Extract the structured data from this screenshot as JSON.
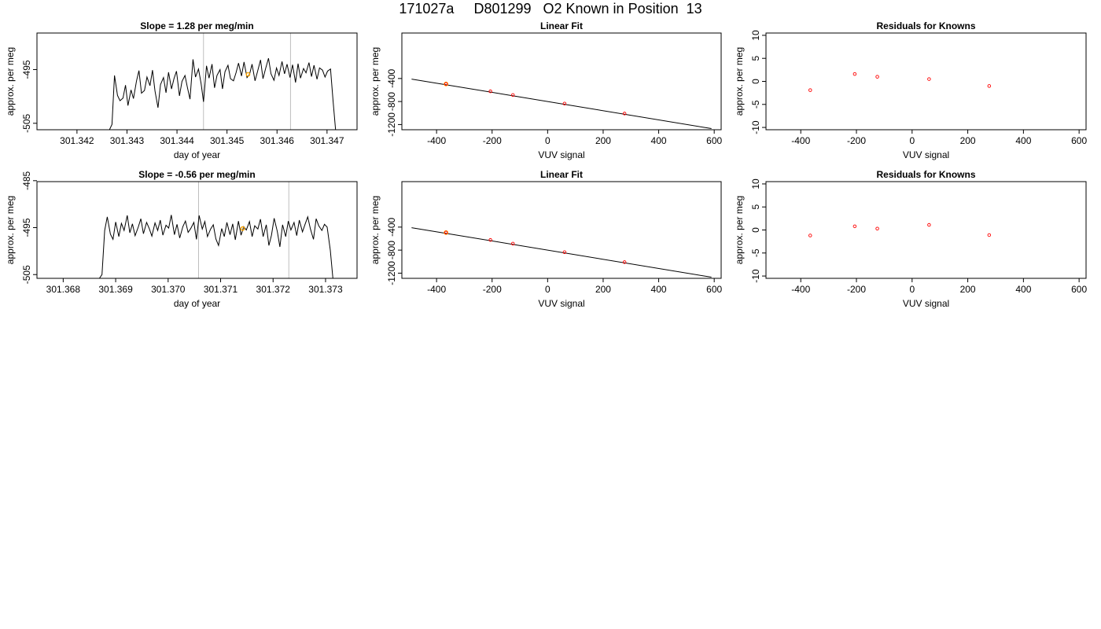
{
  "title": "171027a     D801299   O2 Known in Position  13",
  "colors": {
    "line": "#000000",
    "vline": "#bebebe",
    "point": "#ff0000",
    "highlight": "#ffa500"
  },
  "chart_data": [
    {
      "type": "line",
      "title": "Slope =  1.28  per meg/min",
      "xlabel": "day of year",
      "ylabel": "approx. per meg",
      "xlim": [
        301.3412,
        301.3476
      ],
      "ylim": [
        -506.2,
        -488.2
      ],
      "xticks": [
        "301.342",
        "301.343",
        "301.344",
        "301.345",
        "301.346",
        "301.347"
      ],
      "yticks": [
        "-495",
        "-505"
      ],
      "vlines": [
        301.34453,
        301.34627
      ],
      "highlight": [
        301.34542,
        -495.9
      ],
      "series": [
        {
          "x": [
            301.34265,
            301.3427,
            301.34275,
            301.34281,
            301.34286,
            301.34292,
            301.34297,
            301.34302,
            301.34308,
            301.34313,
            301.34319,
            301.34324,
            301.34329,
            301.34335,
            301.3434,
            301.34346,
            301.34351,
            301.34356,
            301.34362,
            301.34367,
            301.34373,
            301.34378,
            301.34383,
            301.34389,
            301.34394,
            301.34399,
            301.34405,
            301.3441,
            301.34416,
            301.34421,
            301.34426,
            301.34432,
            301.34437,
            301.34443,
            301.34448,
            301.34453,
            301.34459,
            301.34464,
            301.3447,
            301.34475,
            301.3448,
            301.34486,
            301.34491,
            301.34496,
            301.34502,
            301.34507,
            301.34513,
            301.34518,
            301.34523,
            301.34529,
            301.34534,
            301.3454,
            301.34545,
            301.3455,
            301.34556,
            301.34561,
            301.34567,
            301.34572,
            301.34577,
            301.34583,
            301.34588,
            301.34594,
            301.34599,
            301.34604,
            301.3461,
            301.34615,
            301.3462,
            301.34626,
            301.34631,
            301.34637,
            301.34642,
            301.34647,
            301.34653,
            301.34658,
            301.34664,
            301.34669,
            301.34674,
            301.3468,
            301.34685,
            301.34691,
            301.34696,
            301.34701,
            301.34707,
            301.34712,
            301.34717
          ],
          "y": [
            -506.2,
            -505.2,
            -496.1,
            -499.8,
            -500.8,
            -500.3,
            -497.9,
            -501.7,
            -498.8,
            -500.4,
            -497.1,
            -495.2,
            -499.4,
            -498.9,
            -496.4,
            -498.0,
            -495.1,
            -499.0,
            -502.1,
            -497.8,
            -496.5,
            -499.3,
            -495.5,
            -498.6,
            -496.7,
            -495.3,
            -499.9,
            -497.2,
            -496.1,
            -498.4,
            -500.5,
            -493.1,
            -496.4,
            -494.9,
            -497.5,
            -501.0,
            -494.3,
            -496.6,
            -494.0,
            -498.4,
            -496.1,
            -495.0,
            -498.6,
            -495.4,
            -494.2,
            -496.7,
            -497.1,
            -495.6,
            -493.8,
            -496.2,
            -493.6,
            -496.5,
            -495.9,
            -494.0,
            -497.1,
            -495.4,
            -493.2,
            -496.7,
            -494.9,
            -492.9,
            -495.8,
            -497.0,
            -494.7,
            -496.1,
            -493.5,
            -495.8,
            -494.0,
            -496.5,
            -494.1,
            -497.4,
            -493.9,
            -496.6,
            -494.8,
            -495.6,
            -493.7,
            -496.3,
            -494.2,
            -496.8,
            -494.7,
            -495.1,
            -496.4,
            -495.3,
            -494.9,
            -500.8,
            -506.2
          ]
        }
      ]
    },
    {
      "type": "scatter",
      "title": "Linear Fit",
      "xlabel": "VUV signal",
      "ylabel": "approx. per meg",
      "xlim": [
        -525,
        625
      ],
      "ylim": [
        -1290,
        390
      ],
      "xticks": [
        -400,
        -200,
        0,
        200,
        400,
        600
      ],
      "yticks": [
        -400,
        -800,
        -1200
      ],
      "fit_line": [
        [
          -490,
          -410
        ],
        [
          590,
          -1270
        ]
      ],
      "points": {
        "x": [
          -366,
          -206,
          -125,
          61,
          277
        ],
        "y": [
          -495,
          -623,
          -687,
          -836,
          -1009
        ]
      },
      "highlight": [
        -366,
        -495
      ]
    },
    {
      "type": "scatter",
      "title": "Residuals for Knowns",
      "xlabel": "VUV signal",
      "ylabel": "approx. per meg",
      "xlim": [
        -525,
        625
      ],
      "ylim": [
        -10.5,
        10.5
      ],
      "xticks": [
        -400,
        -200,
        0,
        200,
        400,
        600
      ],
      "yticks": [
        10,
        5,
        0,
        -5,
        -10
      ],
      "points": {
        "x": [
          -366,
          -206,
          -125,
          61,
          277
        ],
        "y": [
          -1.9,
          1.6,
          1.0,
          0.5,
          -1.0
        ]
      }
    },
    {
      "type": "line",
      "title": "Slope =  -0.56  per meg/min",
      "xlabel": "day of year",
      "ylabel": "approx. per meg",
      "xlim": [
        301.3675,
        301.3736
      ],
      "ylim": [
        -505.8,
        -485.2
      ],
      "xticks": [
        "301.368",
        "301.369",
        "301.370",
        "301.371",
        "301.372",
        "301.373"
      ],
      "yticks": [
        "-485",
        "-495",
        "-505"
      ],
      "vlines": [
        301.37058,
        301.3723
      ],
      "highlight": [
        301.37142,
        -495.2
      ],
      "series": [
        {
          "x": [
            301.36869,
            301.36874,
            301.36879,
            301.36884,
            301.3689,
            301.36895,
            301.369,
            301.36906,
            301.36911,
            301.36916,
            301.36922,
            301.36927,
            301.36932,
            301.36937,
            301.36943,
            301.36948,
            301.36953,
            301.36959,
            301.36964,
            301.36969,
            301.36975,
            301.3698,
            301.36985,
            301.3699,
            301.36996,
            301.37001,
            301.37006,
            301.37012,
            301.37017,
            301.37022,
            301.37028,
            301.37033,
            301.37038,
            301.37043,
            301.37049,
            301.37054,
            301.37059,
            301.37065,
            301.3707,
            301.37075,
            301.37081,
            301.37086,
            301.37091,
            301.37096,
            301.37102,
            301.37107,
            301.37112,
            301.37118,
            301.37123,
            301.37128,
            301.37134,
            301.37139,
            301.37144,
            301.37149,
            301.37155,
            301.3716,
            301.37165,
            301.37171,
            301.37176,
            301.37181,
            301.37187,
            301.37192,
            301.37197,
            301.37202,
            301.37208,
            301.37213,
            301.37218,
            301.37224,
            301.37229,
            301.37234,
            301.3724,
            301.37245,
            301.3725,
            301.37256,
            301.37261,
            301.37266,
            301.37271,
            301.37277,
            301.37282,
            301.37287,
            301.37293,
            301.37298,
            301.37303,
            301.37309,
            301.37314
          ],
          "y": [
            -505.8,
            -505.0,
            -495.6,
            -492.7,
            -496.4,
            -497.5,
            -493.8,
            -496.9,
            -494.1,
            -495.6,
            -492.4,
            -496.1,
            -494.2,
            -496.7,
            -494.9,
            -493.1,
            -496.3,
            -493.9,
            -495.2,
            -496.8,
            -494.0,
            -495.6,
            -493.4,
            -496.6,
            -494.5,
            -495.1,
            -492.3,
            -496.5,
            -494.3,
            -497.2,
            -494.8,
            -493.6,
            -496.0,
            -495.2,
            -493.9,
            -497.5,
            -492.4,
            -495.3,
            -493.7,
            -496.9,
            -495.3,
            -494.4,
            -497.4,
            -498.8,
            -495.2,
            -496.9,
            -493.9,
            -496.5,
            -494.2,
            -497.6,
            -493.6,
            -496.6,
            -494.8,
            -495.5,
            -493.7,
            -496.9,
            -494.6,
            -495.3,
            -493.2,
            -496.9,
            -494.4,
            -498.8,
            -496.6,
            -493.0,
            -495.8,
            -499.1,
            -494.4,
            -496.9,
            -493.6,
            -495.5,
            -493.9,
            -496.7,
            -493.4,
            -495.9,
            -494.3,
            -492.7,
            -495.2,
            -497.5,
            -493.1,
            -494.6,
            -495.6,
            -494.3,
            -494.9,
            -499.8,
            -505.8
          ]
        }
      ]
    },
    {
      "type": "scatter",
      "title": "Linear Fit",
      "xlabel": "VUV signal",
      "ylabel": "approx. per meg",
      "xlim": [
        -525,
        625
      ],
      "ylim": [
        -1290,
        390
      ],
      "xticks": [
        -400,
        -200,
        0,
        200,
        400,
        600
      ],
      "yticks": [
        -400,
        -800,
        -1200
      ],
      "fit_line": [
        [
          -490,
          -410
        ],
        [
          590,
          -1270
        ]
      ],
      "points": {
        "x": [
          -366,
          -206,
          -125,
          61,
          277
        ],
        "y": [
          -495,
          -623,
          -687,
          -836,
          -1009
        ]
      },
      "highlight": [
        -366,
        -495
      ]
    },
    {
      "type": "scatter",
      "title": "Residuals for Knowns",
      "xlabel": "VUV signal",
      "ylabel": "approx. per meg",
      "xlim": [
        -525,
        625
      ],
      "ylim": [
        -10.5,
        10.5
      ],
      "xticks": [
        -400,
        -200,
        0,
        200,
        400,
        600
      ],
      "yticks": [
        10,
        5,
        0,
        -5,
        -10
      ],
      "points": {
        "x": [
          -366,
          -206,
          -125,
          61,
          277
        ],
        "y": [
          -1.2,
          0.8,
          0.3,
          1.1,
          -1.1
        ]
      }
    }
  ]
}
